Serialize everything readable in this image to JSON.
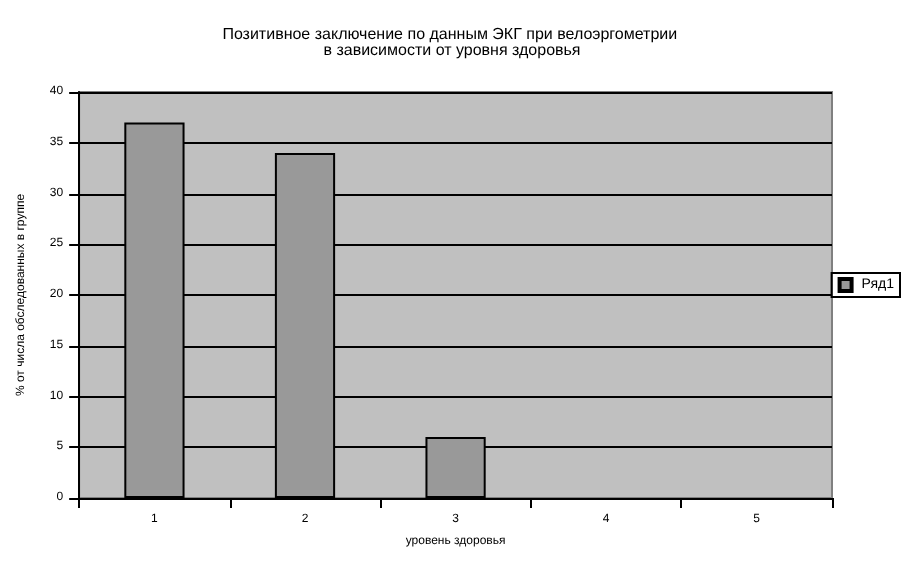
{
  "chart_data": {
    "type": "bar",
    "title": "Позитивное заключение по данным ЭКГ при велоэргометрии в зависимости от уровня здоровья",
    "xlabel": "уровень здоровья",
    "ylabel": "% от числа обследованных в группе",
    "categories": [
      "1",
      "2",
      "3",
      "4",
      "5"
    ],
    "series": [
      {
        "name": "Ряд1",
        "color": "#999999",
        "values": [
          37,
          34,
          6,
          0,
          0
        ]
      }
    ],
    "ylim": [
      0,
      40
    ],
    "yticks": [
      0,
      5,
      10,
      15,
      20,
      25,
      30,
      35,
      40
    ],
    "grid": "y",
    "legend": "right"
  }
}
